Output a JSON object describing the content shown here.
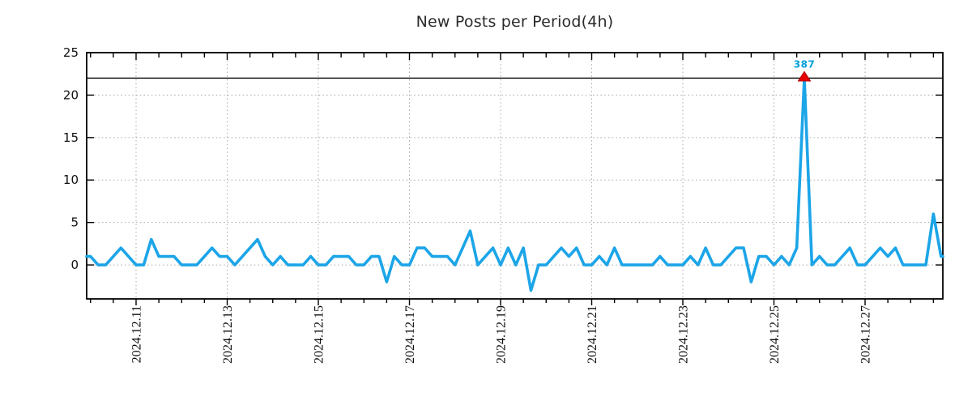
{
  "chart_data": {
    "type": "line",
    "title": "New Posts per Period(4h)",
    "xlabel": "",
    "ylabel": "",
    "x_start": "2024.12.10 00:00",
    "x_step_hours": 4,
    "values": [
      1,
      0,
      0,
      1,
      2,
      1,
      0,
      0,
      3,
      1,
      1,
      1,
      0,
      0,
      0,
      1,
      2,
      1,
      1,
      0,
      1,
      2,
      3,
      1,
      0,
      1,
      0,
      0,
      0,
      1,
      0,
      0,
      1,
      1,
      1,
      0,
      0,
      1,
      1,
      -2,
      1,
      0,
      0,
      2,
      2,
      1,
      1,
      1,
      0,
      2,
      4,
      0,
      1,
      2,
      0,
      2,
      0,
      2,
      -3,
      0,
      0,
      1,
      2,
      1,
      2,
      0,
      0,
      1,
      0,
      2,
      0,
      0,
      0,
      0,
      0,
      1,
      0,
      0,
      0,
      1,
      0,
      2,
      0,
      0,
      1,
      2,
      2,
      -2,
      1,
      1,
      0,
      1,
      0,
      2,
      387,
      0,
      1,
      0,
      0,
      1,
      2,
      0,
      0,
      1,
      2,
      1,
      2,
      0,
      0,
      0,
      0,
      6,
      1
    ],
    "series_name": "new posts",
    "series_color": "#1ca5e8",
    "x_tick_labels": [
      "2024.12.11",
      "2024.12.13",
      "2024.12.15",
      "2024.12.17",
      "2024.12.19",
      "2024.12.21",
      "2024.12.23",
      "2024.12.25",
      "2024.12.27"
    ],
    "x_tick_indices": [
      6,
      18,
      30,
      42,
      54,
      66,
      78,
      90,
      102
    ],
    "minor_tick_every_points": 3,
    "yticks": [
      0,
      5,
      10,
      15,
      20,
      25
    ],
    "ylim": [
      -4,
      25
    ],
    "grid": "dotted",
    "grid_color": "#a8a8a8",
    "threshold_line_y": 22,
    "clip_value": 22,
    "annotation": {
      "label": "387",
      "index": 94,
      "value": 387,
      "text_color": "#00a0dc",
      "marker": "triangle-up",
      "marker_color": "#e60000"
    }
  }
}
